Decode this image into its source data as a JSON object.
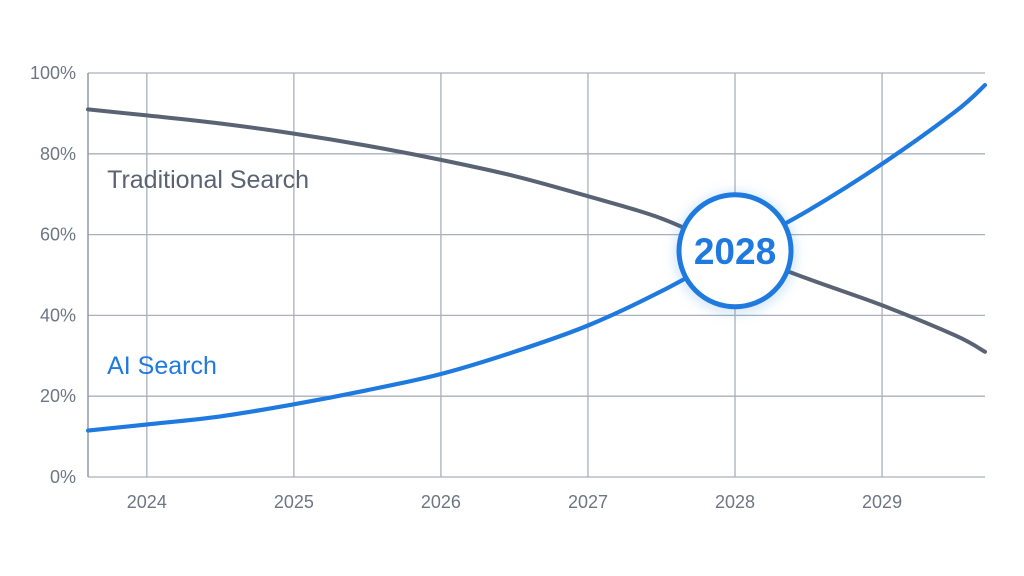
{
  "chart_data": {
    "type": "line",
    "x": [
      2023.6,
      2024,
      2024.5,
      2025,
      2025.5,
      2026,
      2026.5,
      2027,
      2027.5,
      2028,
      2028.5,
      2029,
      2029.5,
      2029.7
    ],
    "xticks": [
      "2024",
      "2025",
      "2026",
      "2027",
      "2028",
      "2029"
    ],
    "yticks": [
      "0%",
      "20%",
      "40%",
      "60%",
      "80%",
      "100%"
    ],
    "xlim": [
      2023.6,
      2029.7
    ],
    "ylim": [
      0,
      100
    ],
    "grid": true,
    "series": [
      {
        "name": "Traditional Search",
        "color": "#5a6373",
        "values": [
          91,
          89.5,
          87.5,
          85,
          82,
          78.5,
          74.5,
          69.5,
          64,
          56,
          49,
          42.5,
          35,
          31
        ]
      },
      {
        "name": "AI Search",
        "color": "#1f7ae0",
        "values": [
          11.5,
          13,
          15,
          18,
          21.5,
          25.5,
          31,
          37.5,
          46,
          56,
          66,
          77.5,
          90.5,
          97
        ]
      }
    ],
    "annotation": {
      "text": "2028",
      "x": 2028,
      "y": 56,
      "color": "#1f7ae0"
    }
  }
}
